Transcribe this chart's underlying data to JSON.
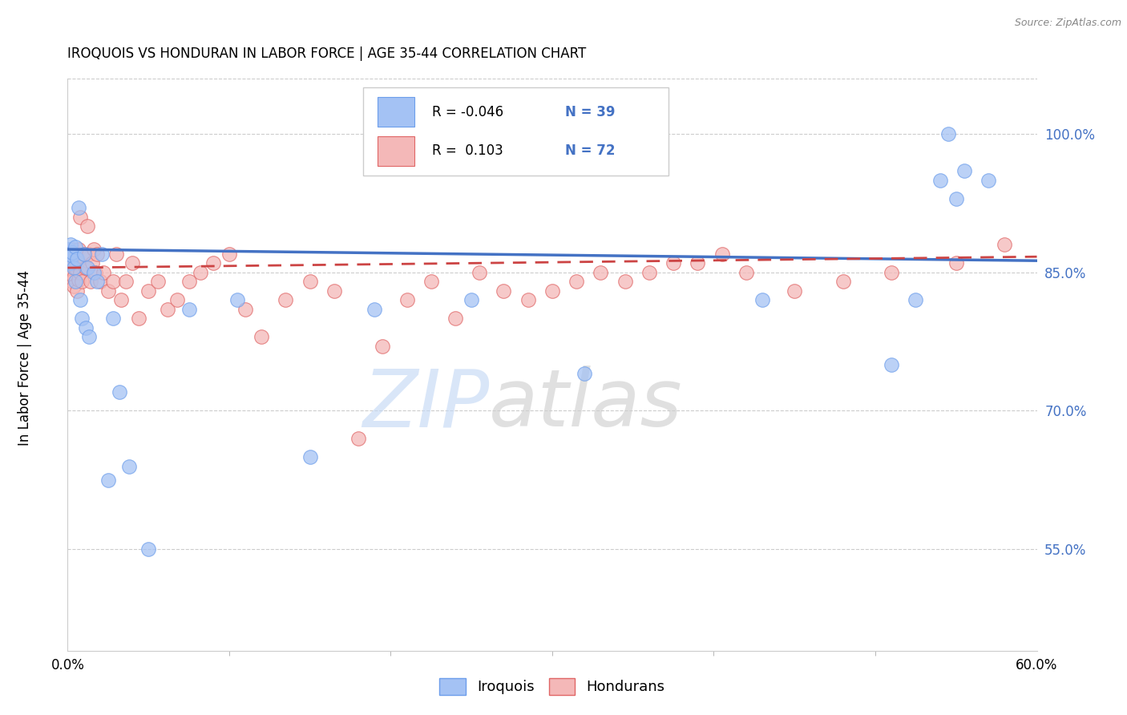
{
  "title": "IROQUOIS VS HONDURAN IN LABOR FORCE | AGE 35-44 CORRELATION CHART",
  "source": "Source: ZipAtlas.com",
  "ylabel": "In Labor Force | Age 35-44",
  "legend_r_iroquois": "-0.046",
  "legend_n_iroquois": "39",
  "legend_r_honduran": "0.103",
  "legend_n_honduran": "72",
  "iroquois_color": "#a4c2f4",
  "honduran_color": "#f4b8b8",
  "iroquois_edge_color": "#6d9eeb",
  "honduran_edge_color": "#e06666",
  "iroquois_line_color": "#4472c4",
  "honduran_line_color": "#cc4444",
  "ytick_color": "#4472c4",
  "grid_color": "#cccccc",
  "iroquois_x": [
    0.001,
    0.001,
    0.002,
    0.002,
    0.003,
    0.003,
    0.004,
    0.005,
    0.005,
    0.006,
    0.007,
    0.008,
    0.009,
    0.01,
    0.011,
    0.012,
    0.013,
    0.016,
    0.018,
    0.021,
    0.025,
    0.028,
    0.032,
    0.038,
    0.05,
    0.075,
    0.105,
    0.15,
    0.19,
    0.25,
    0.32,
    0.43,
    0.51,
    0.525,
    0.54,
    0.545,
    0.55,
    0.555,
    0.57
  ],
  "iroquois_y": [
    0.875,
    0.87,
    0.88,
    0.86,
    0.868,
    0.872,
    0.855,
    0.878,
    0.84,
    0.865,
    0.92,
    0.82,
    0.8,
    0.87,
    0.79,
    0.855,
    0.78,
    0.85,
    0.84,
    0.87,
    0.625,
    0.8,
    0.72,
    0.64,
    0.55,
    0.81,
    0.82,
    0.65,
    0.81,
    0.82,
    0.74,
    0.82,
    0.75,
    0.82,
    0.95,
    1.0,
    0.93,
    0.96,
    0.95
  ],
  "honduran_x": [
    0.001,
    0.001,
    0.001,
    0.002,
    0.002,
    0.003,
    0.003,
    0.003,
    0.004,
    0.004,
    0.005,
    0.005,
    0.006,
    0.006,
    0.007,
    0.007,
    0.008,
    0.008,
    0.009,
    0.01,
    0.011,
    0.012,
    0.013,
    0.014,
    0.015,
    0.016,
    0.017,
    0.018,
    0.02,
    0.022,
    0.025,
    0.028,
    0.03,
    0.033,
    0.036,
    0.04,
    0.044,
    0.05,
    0.056,
    0.062,
    0.068,
    0.075,
    0.082,
    0.09,
    0.1,
    0.11,
    0.12,
    0.135,
    0.15,
    0.165,
    0.18,
    0.195,
    0.21,
    0.225,
    0.24,
    0.255,
    0.27,
    0.285,
    0.3,
    0.315,
    0.33,
    0.345,
    0.36,
    0.375,
    0.39,
    0.405,
    0.42,
    0.45,
    0.48,
    0.51,
    0.55,
    0.58
  ],
  "honduran_y": [
    0.87,
    0.865,
    0.86,
    0.855,
    0.85,
    0.848,
    0.84,
    0.875,
    0.845,
    0.835,
    0.87,
    0.855,
    0.83,
    0.86,
    0.875,
    0.842,
    0.91,
    0.85,
    0.84,
    0.87,
    0.855,
    0.9,
    0.87,
    0.84,
    0.86,
    0.875,
    0.85,
    0.87,
    0.84,
    0.85,
    0.83,
    0.84,
    0.87,
    0.82,
    0.84,
    0.86,
    0.8,
    0.83,
    0.84,
    0.81,
    0.82,
    0.84,
    0.85,
    0.86,
    0.87,
    0.81,
    0.78,
    0.82,
    0.84,
    0.83,
    0.67,
    0.77,
    0.82,
    0.84,
    0.8,
    0.85,
    0.83,
    0.82,
    0.83,
    0.84,
    0.85,
    0.84,
    0.85,
    0.86,
    0.86,
    0.87,
    0.85,
    0.83,
    0.84,
    0.85,
    0.86,
    0.88
  ],
  "xlim": [
    0.0,
    0.6
  ],
  "ylim": [
    0.44,
    1.06
  ],
  "ytick_vals": [
    0.55,
    0.7,
    0.85,
    1.0
  ],
  "ytick_labels": [
    "55.0%",
    "70.0%",
    "85.0%",
    "100.0%"
  ],
  "xtick_minor_positions": [
    0.0,
    0.1,
    0.2,
    0.3,
    0.4,
    0.5,
    0.6
  ]
}
